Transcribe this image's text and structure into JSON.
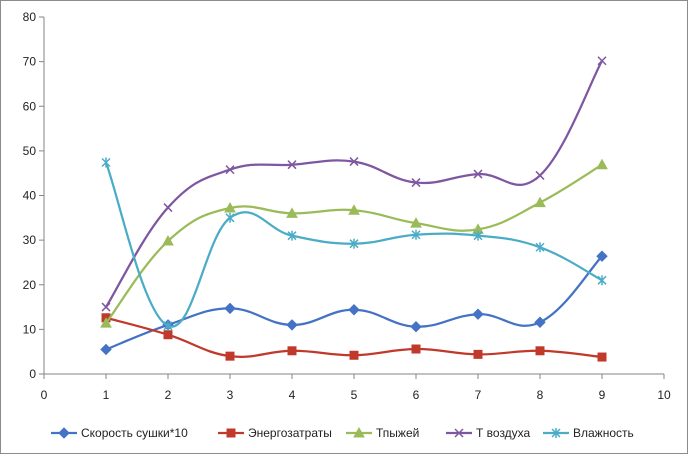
{
  "chart_data": {
    "type": "scatter",
    "title": "",
    "xlabel": "",
    "ylabel": "",
    "xlim": [
      0,
      10
    ],
    "ylim": [
      0,
      80
    ],
    "x_ticks": [
      0,
      1,
      2,
      3,
      4,
      5,
      6,
      7,
      8,
      9,
      10
    ],
    "y_ticks": [
      0,
      10,
      20,
      30,
      40,
      50,
      60,
      70,
      80
    ],
    "grid": "none",
    "legend_position": "bottom",
    "smooth_lines": true,
    "x": [
      1,
      2,
      3,
      4,
      5,
      6,
      7,
      8,
      9
    ],
    "series": [
      {
        "name": "Скорость сушки*10",
        "color": "#4472c4",
        "marker": "diamond",
        "values": [
          5.5,
          11,
          14.7,
          11,
          14.4,
          10.6,
          13.4,
          11.6,
          26.4
        ]
      },
      {
        "name": "Энергозатраты",
        "color": "#c0392b",
        "marker": "square",
        "values": [
          12.6,
          8.8,
          4,
          5.2,
          4.2,
          5.6,
          4.4,
          5.2,
          3.8
        ]
      },
      {
        "name": "Тпыжей",
        "color": "#9bbb59",
        "marker": "triangle",
        "values": [
          11.4,
          29.8,
          37.2,
          36,
          36.7,
          33.8,
          32.4,
          38.4,
          46.9
        ]
      },
      {
        "name": "Т воздуха",
        "color": "#7e57a0",
        "marker": "x",
        "values": [
          15,
          37.3,
          45.8,
          46.9,
          47.6,
          42.9,
          44.8,
          44.5,
          70.2
        ]
      },
      {
        "name": "Влажность",
        "color": "#4bacc6",
        "marker": "star",
        "values": [
          47.4,
          10.8,
          35,
          31,
          29.2,
          31.2,
          31,
          28.4,
          21
        ]
      }
    ]
  }
}
